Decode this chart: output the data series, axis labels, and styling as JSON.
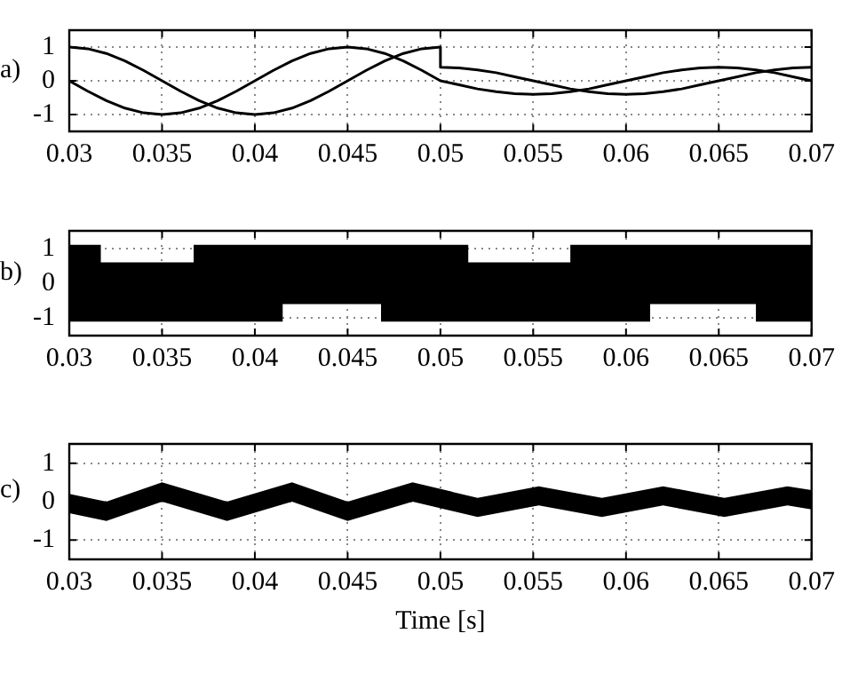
{
  "chart_data": [
    {
      "type": "line",
      "annotations": [
        "a)"
      ],
      "xlim": [
        0.03,
        0.07
      ],
      "xticks": [
        0.03,
        0.035,
        0.04,
        0.045,
        0.05,
        0.055,
        0.06,
        0.065,
        0.07
      ],
      "ylim": [
        -1.5,
        1.5
      ],
      "yticks": [
        -1,
        0,
        1
      ],
      "grid": true,
      "series": [
        {
          "color": "#000000",
          "x": [
            0.03,
            0.031,
            0.032,
            0.033,
            0.034,
            0.035,
            0.036,
            0.037,
            0.038,
            0.039,
            0.04,
            0.041,
            0.042,
            0.043,
            0.044,
            0.045,
            0.046,
            0.047,
            0.048,
            0.049,
            0.05,
            0.05,
            0.051,
            0.052,
            0.053,
            0.054,
            0.055,
            0.056,
            0.057,
            0.058,
            0.059,
            0.06,
            0.061,
            0.062,
            0.063,
            0.064,
            0.065,
            0.066,
            0.067,
            0.068,
            0.069,
            0.07
          ],
          "values": [
            1,
            0.95,
            0.81,
            0.59,
            0.31,
            0,
            -0.31,
            -0.59,
            -0.81,
            -0.95,
            -1,
            -0.95,
            -0.81,
            -0.59,
            -0.31,
            0,
            0.31,
            0.59,
            0.81,
            0.95,
            1,
            0.4,
            0.38,
            0.32,
            0.24,
            0.12,
            0,
            -0.12,
            -0.24,
            -0.32,
            -0.38,
            -0.4,
            -0.38,
            -0.32,
            -0.24,
            -0.12,
            0,
            0.12,
            0.24,
            0.32,
            0.38,
            0.4
          ]
        },
        {
          "color": "#000000",
          "x": [
            0.03,
            0.031,
            0.032,
            0.033,
            0.034,
            0.035,
            0.036,
            0.037,
            0.038,
            0.039,
            0.04,
            0.041,
            0.042,
            0.043,
            0.044,
            0.045,
            0.046,
            0.047,
            0.048,
            0.049,
            0.05,
            0.051,
            0.052,
            0.053,
            0.054,
            0.055,
            0.056,
            0.057,
            0.058,
            0.059,
            0.06,
            0.061,
            0.062,
            0.063,
            0.064,
            0.065,
            0.066,
            0.067,
            0.068,
            0.069,
            0.07
          ],
          "values": [
            0,
            -0.31,
            -0.59,
            -0.81,
            -0.95,
            -1,
            -0.95,
            -0.81,
            -0.59,
            -0.31,
            0,
            0.31,
            0.59,
            0.81,
            0.95,
            1,
            0.95,
            0.81,
            0.59,
            0.31,
            0,
            -0.12,
            -0.24,
            -0.32,
            -0.38,
            -0.4,
            -0.38,
            -0.32,
            -0.24,
            -0.12,
            0,
            0.12,
            0.24,
            0.32,
            0.38,
            0.4,
            0.38,
            0.32,
            0.24,
            0.12,
            0
          ]
        }
      ]
    },
    {
      "type": "line",
      "annotations": [
        "b)"
      ],
      "xlim": [
        0.03,
        0.07
      ],
      "xticks": [
        0.03,
        0.035,
        0.04,
        0.045,
        0.05,
        0.055,
        0.06,
        0.065,
        0.07
      ],
      "ylim": [
        -1.5,
        1.5
      ],
      "yticks": [
        -1,
        0,
        1
      ],
      "grid": true,
      "series": [
        {
          "color": "#000000",
          "x": [
            0.03,
            0.0317,
            0.0317,
            0.0367,
            0.0367,
            0.0415,
            0.0415,
            0.0468,
            0.0468,
            0.0515,
            0.0515,
            0.057,
            0.057,
            0.0613,
            0.0613,
            0.067,
            0.067,
            0.07
          ],
          "values": [
            null,
            null,
            null,
            null,
            null,
            null,
            null,
            null,
            null,
            null,
            null,
            null,
            null,
            null,
            null,
            null,
            null,
            null
          ],
          "upper": [
            1.1,
            1.1,
            0.6,
            0.6,
            1.1,
            1.1,
            1.1,
            1.1,
            1.1,
            1.1,
            0.6,
            0.6,
            1.1,
            1.1,
            1.1,
            1.1,
            1.1,
            1.1
          ],
          "lower": [
            -1.1,
            -1.1,
            -1.1,
            -1.1,
            -1.1,
            -1.1,
            -0.6,
            -0.6,
            -1.1,
            -1.1,
            -1.1,
            -1.1,
            -1.1,
            -1.1,
            -0.6,
            -0.6,
            -1.1,
            -1.1
          ]
        }
      ]
    },
    {
      "type": "line",
      "annotations": [
        "c)"
      ],
      "xlabel": "Time [s]",
      "xlim": [
        0.03,
        0.07
      ],
      "xticks": [
        0.03,
        0.035,
        0.04,
        0.045,
        0.05,
        0.055,
        0.06,
        0.065,
        0.07
      ],
      "ylim": [
        -1.5,
        1.5
      ],
      "yticks": [
        -1,
        0,
        1
      ],
      "grid": true,
      "series": [
        {
          "color": "#000000",
          "x": [
            0.03,
            0.032,
            0.035,
            0.0385,
            0.042,
            0.045,
            0.0485,
            0.052,
            0.0553,
            0.0587,
            0.062,
            0.0653,
            0.0687,
            0.07
          ],
          "values": [
            null,
            null,
            null,
            null,
            null,
            null,
            null,
            null,
            null,
            null,
            null,
            null,
            null,
            null
          ],
          "upper": [
            0.2,
            0,
            0.5,
            0,
            0.5,
            0,
            0.5,
            0.1,
            0.4,
            0.1,
            0.4,
            0.1,
            0.4,
            0.3
          ],
          "lower": [
            -0.3,
            -0.5,
            0,
            -0.5,
            0,
            -0.5,
            0,
            -0.4,
            -0.1,
            -0.4,
            -0.1,
            -0.4,
            -0.1,
            -0.2
          ]
        }
      ]
    }
  ]
}
